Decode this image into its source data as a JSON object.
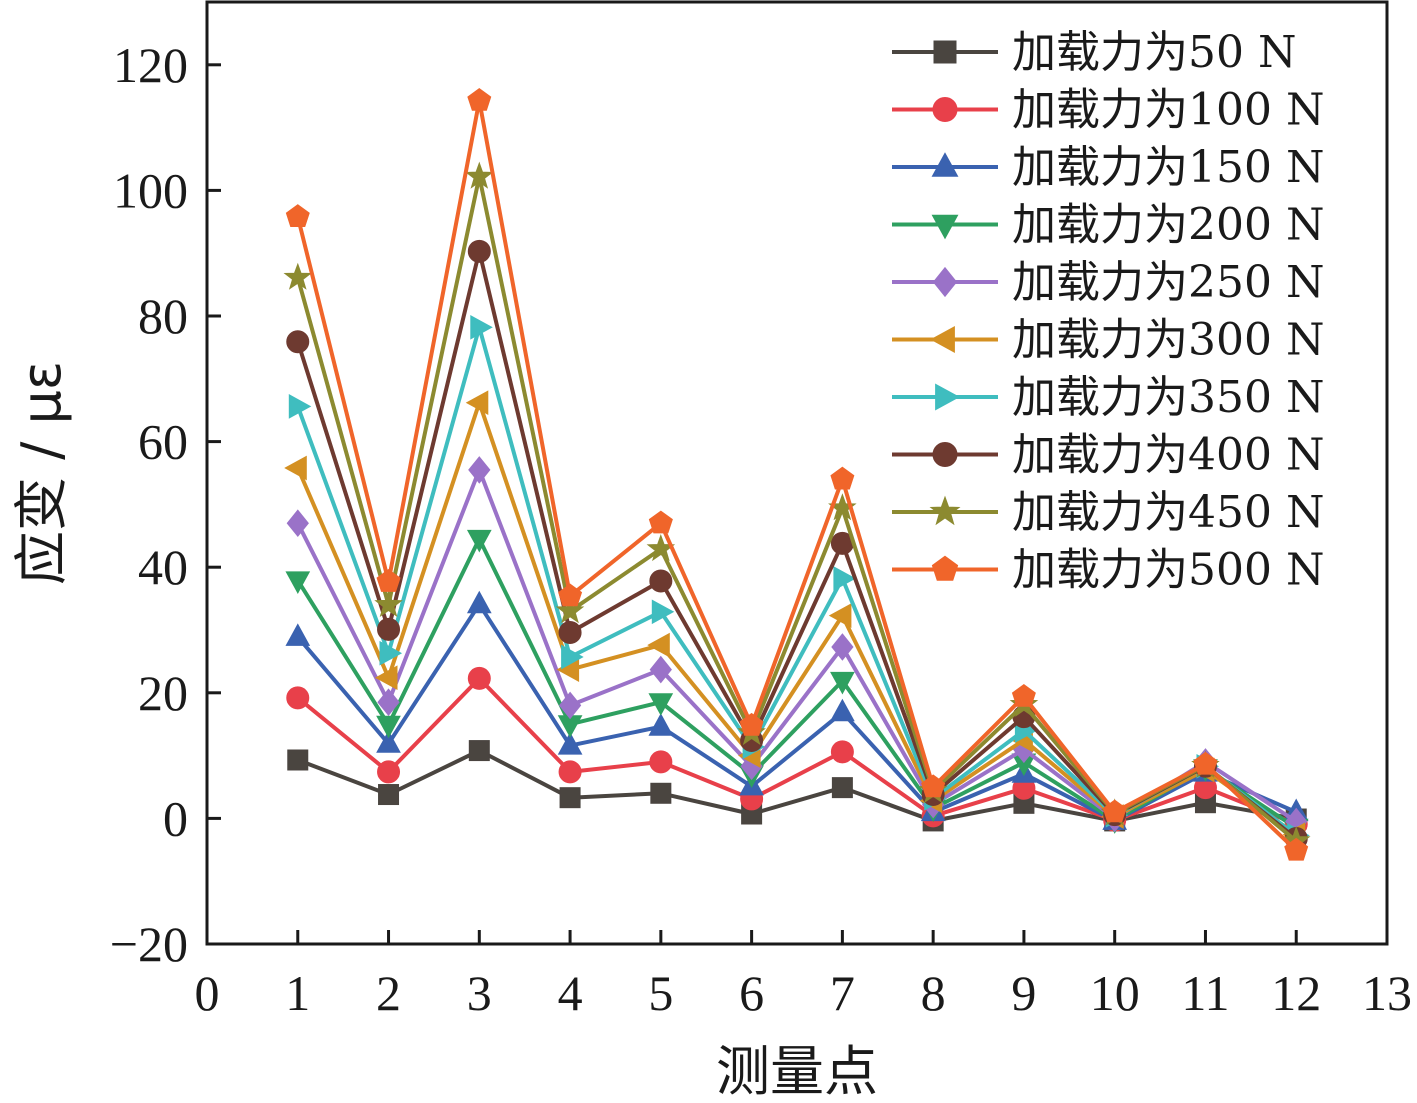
{
  "chart_data": {
    "type": "line",
    "xlabel": "测量点",
    "ylabel": "应变 / με",
    "xlim": [
      0,
      13
    ],
    "ylim": [
      -20,
      130
    ],
    "x_ticks": [
      "0",
      "1",
      "2",
      "3",
      "4",
      "5",
      "6",
      "7",
      "8",
      "9",
      "10",
      "11",
      "12",
      "13"
    ],
    "y_ticks": [
      "−20",
      "0",
      "20",
      "40",
      "60",
      "80",
      "100",
      "120"
    ],
    "legend_position": "top-right",
    "x": [
      1,
      2,
      3,
      4,
      5,
      6,
      7,
      8,
      9,
      10,
      11,
      12
    ],
    "series": [
      {
        "name": "加载力为50 N",
        "color": "#4a4540",
        "marker": "square",
        "values": [
          9.3,
          3.8,
          10.8,
          3.3,
          4.0,
          0.7,
          4.9,
          -0.4,
          2.4,
          -0.4,
          2.5,
          -0.1
        ]
      },
      {
        "name": "加载力为100 N",
        "color": "#e8404a",
        "marker": "circle",
        "values": [
          19.2,
          7.4,
          22.3,
          7.4,
          9.0,
          3.1,
          10.6,
          0.4,
          4.8,
          -0.3,
          4.9,
          -0.9
        ]
      },
      {
        "name": "加载力为150 N",
        "color": "#3a62b0",
        "marker": "triangle-up",
        "values": [
          28.9,
          11.9,
          34.1,
          11.6,
          14.6,
          5.1,
          16.9,
          1.0,
          7.1,
          -0.4,
          7.3,
          1.0
        ]
      },
      {
        "name": "加载力为200 N",
        "color": "#2ea060",
        "marker": "triangle-down",
        "values": [
          37.9,
          14.9,
          44.5,
          15.0,
          18.5,
          7.0,
          21.9,
          1.6,
          8.9,
          -0.3,
          8.0,
          -1.5
        ]
      },
      {
        "name": "加载力为250 N",
        "color": "#9a72c8",
        "marker": "diamond",
        "values": [
          47.0,
          18.5,
          55.5,
          18.0,
          23.7,
          8.3,
          27.3,
          2.2,
          11.0,
          0.0,
          9.0,
          -0.5
        ]
      },
      {
        "name": "加载力为300 N",
        "color": "#d49022",
        "marker": "triangle-left",
        "values": [
          55.8,
          22.4,
          66.2,
          23.7,
          27.6,
          10.0,
          32.3,
          2.8,
          12.5,
          0.3,
          7.7,
          -2.6
        ]
      },
      {
        "name": "加载力为350 N",
        "color": "#3fbdbf",
        "marker": "triangle-right",
        "values": [
          65.6,
          26.3,
          78.2,
          25.7,
          32.9,
          11.4,
          38.2,
          3.2,
          14.0,
          0.5,
          8.3,
          -2.7
        ]
      },
      {
        "name": "加载力为400 N",
        "color": "#6e3a30",
        "marker": "circle",
        "values": [
          75.9,
          30.1,
          90.3,
          29.6,
          37.8,
          12.4,
          43.8,
          3.8,
          16.2,
          0.6,
          8.3,
          -3.2
        ]
      },
      {
        "name": "加载力为450 N",
        "color": "#8c8a30",
        "marker": "star",
        "values": [
          86.1,
          34.0,
          102.2,
          33.0,
          42.9,
          13.6,
          49.4,
          4.4,
          18.1,
          0.8,
          8.4,
          -3.6
        ]
      },
      {
        "name": "加载力为500 N",
        "color": "#f0652a",
        "marker": "pentagon",
        "values": [
          95.8,
          37.7,
          114.3,
          35.4,
          47.0,
          14.8,
          54.0,
          5.0,
          19.4,
          1.0,
          8.6,
          -5.1
        ]
      }
    ]
  }
}
